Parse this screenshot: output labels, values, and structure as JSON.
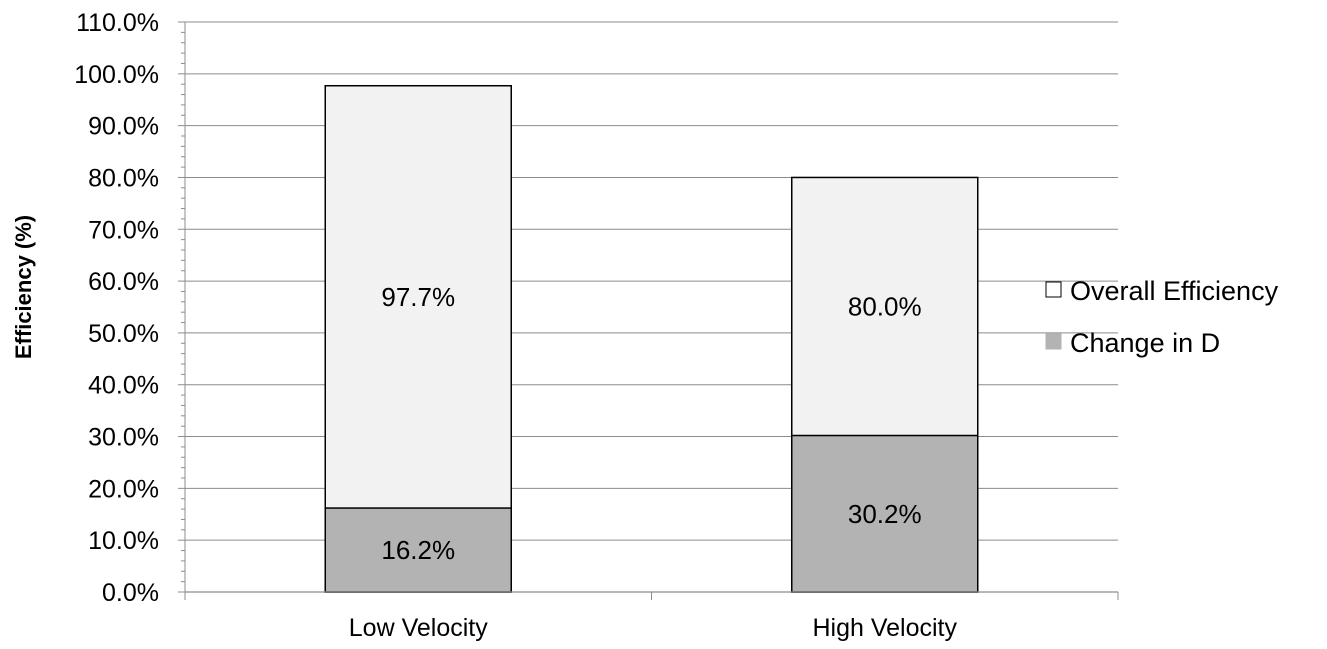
{
  "chart_data": {
    "type": "bar",
    "stacking": "overlapping",
    "categories": [
      "Low Velocity",
      "High Velocity"
    ],
    "series": [
      {
        "name": "Overall Efficiency",
        "values": [
          97.7,
          80.0
        ],
        "labels": [
          "97.7%",
          "80.0%"
        ],
        "color": "#f2f2f2"
      },
      {
        "name": "Change in D",
        "values": [
          16.2,
          30.2
        ],
        "labels": [
          "16.2%",
          "30.2%"
        ],
        "color": "#b3b3b3"
      }
    ],
    "title": "",
    "xlabel": "",
    "ylabel": "Efficiency (%)",
    "ylim": [
      0,
      110
    ],
    "yticks": [
      0,
      10,
      20,
      30,
      40,
      50,
      60,
      70,
      80,
      90,
      100,
      110
    ],
    "ytick_labels": [
      "0.0%",
      "10.0%",
      "20.0%",
      "30.0%",
      "40.0%",
      "50.0%",
      "60.0%",
      "70.0%",
      "80.0%",
      "90.0%",
      "100.0%",
      "110.0%"
    ],
    "grid": true,
    "legend": "right"
  }
}
